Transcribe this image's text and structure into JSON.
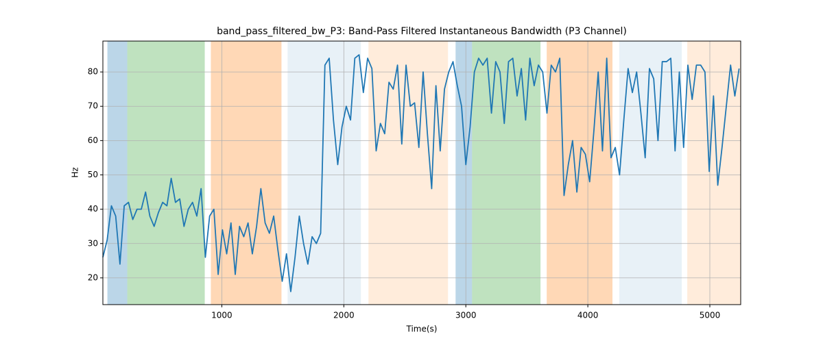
{
  "chart_data": {
    "type": "line",
    "title": "band_pass_filtered_bw_P3: Band-Pass Filtered Instantaneous Bandwidth (P3 Channel)",
    "xlabel": "Time(s)",
    "ylabel": "Hz",
    "xlim": [
      25,
      5253
    ],
    "ylim": [
      12.2,
      89
    ],
    "xticks": [
      1000,
      2000,
      3000,
      4000,
      5000
    ],
    "yticks": [
      20,
      30,
      40,
      50,
      60,
      70,
      80
    ],
    "grid": true,
    "spans": [
      {
        "start": 62,
        "end": 225,
        "color": "rgba(31,119,180,0.3)"
      },
      {
        "start": 225,
        "end": 860,
        "color": "rgba(44,160,44,0.3)"
      },
      {
        "start": 910,
        "end": 1489,
        "color": "rgba(255,127,14,0.3)"
      },
      {
        "start": 1539,
        "end": 2140,
        "color": "rgba(31,119,180,0.1)"
      },
      {
        "start": 2202,
        "end": 2854,
        "color": "rgba(255,127,14,0.15)"
      },
      {
        "start": 2916,
        "end": 3051,
        "color": "rgba(31,119,180,0.3)"
      },
      {
        "start": 3051,
        "end": 3612,
        "color": "rgba(44,160,44,0.3)"
      },
      {
        "start": 3663,
        "end": 4202,
        "color": "rgba(255,127,14,0.3)"
      },
      {
        "start": 4258,
        "end": 4770,
        "color": "rgba(31,119,180,0.1)"
      },
      {
        "start": 4815,
        "end": 5253,
        "color": "rgba(255,127,14,0.15)"
      }
    ],
    "x": [
      25,
      60,
      95,
      130,
      165,
      200,
      235,
      270,
      305,
      340,
      375,
      410,
      445,
      480,
      515,
      550,
      585,
      620,
      655,
      690,
      725,
      760,
      795,
      830,
      865,
      900,
      935,
      970,
      1005,
      1040,
      1075,
      1110,
      1145,
      1180,
      1215,
      1250,
      1285,
      1320,
      1355,
      1390,
      1425,
      1460,
      1495,
      1530,
      1565,
      1600,
      1635,
      1670,
      1705,
      1740,
      1775,
      1810,
      1845,
      1880,
      1915,
      1950,
      1985,
      2020,
      2055,
      2090,
      2125,
      2160,
      2195,
      2230,
      2265,
      2300,
      2335,
      2370,
      2405,
      2440,
      2475,
      2510,
      2545,
      2580,
      2615,
      2650,
      2685,
      2720,
      2755,
      2790,
      2825,
      2860,
      2895,
      2930,
      2965,
      3000,
      3035,
      3070,
      3105,
      3140,
      3175,
      3210,
      3245,
      3280,
      3315,
      3350,
      3385,
      3420,
      3455,
      3490,
      3525,
      3560,
      3595,
      3630,
      3665,
      3700,
      3735,
      3770,
      3805,
      3840,
      3875,
      3910,
      3945,
      3980,
      4015,
      4050,
      4085,
      4120,
      4155,
      4190,
      4225,
      4260,
      4295,
      4330,
      4365,
      4400,
      4435,
      4470,
      4505,
      4540,
      4575,
      4610,
      4645,
      4680,
      4715,
      4750,
      4785,
      4820,
      4855,
      4890,
      4925,
      4960,
      4995,
      5030,
      5065,
      5100,
      5135,
      5170,
      5205,
      5240
    ],
    "series": [
      {
        "color": "#1f77b4",
        "values": [
          26,
          31,
          41,
          38,
          24,
          41,
          42,
          37,
          40,
          40,
          45,
          38,
          35,
          39,
          42,
          41,
          49,
          42,
          43,
          35,
          40,
          42,
          38,
          46,
          26,
          38,
          40,
          21,
          34,
          27,
          36,
          21,
          35,
          32,
          36,
          27,
          35,
          46,
          36,
          33,
          38,
          28,
          19,
          27,
          16,
          26,
          38,
          30,
          24,
          32,
          30,
          33,
          82,
          84,
          66,
          53,
          64,
          70,
          66,
          84,
          85,
          74,
          84,
          81,
          57,
          65,
          62,
          77,
          75,
          82,
          59,
          82,
          70,
          71,
          58,
          80,
          62,
          46,
          76,
          57,
          75,
          80,
          83,
          76,
          70,
          53,
          64,
          80,
          84,
          82,
          84,
          68,
          83,
          80,
          65,
          83,
          84,
          73,
          81,
          66,
          84,
          76,
          82,
          80,
          68,
          82,
          80,
          84,
          44,
          53,
          60,
          45,
          58,
          56,
          48,
          63,
          80,
          57,
          84,
          55,
          58,
          50,
          66,
          81,
          74,
          80,
          68,
          55,
          81,
          78,
          60,
          83,
          83,
          84,
          57,
          80,
          58,
          82,
          72,
          82,
          82,
          80,
          51,
          73,
          47,
          58,
          70,
          82,
          73,
          81
        ]
      }
    ]
  }
}
